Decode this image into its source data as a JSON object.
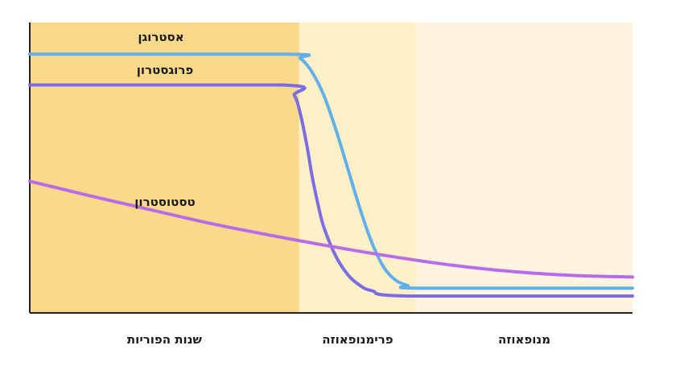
{
  "chart_data": {
    "type": "line",
    "title": "",
    "xlabel": "",
    "ylabel": "",
    "grid": false,
    "legend": "none",
    "x_range": [
      0,
      100
    ],
    "y_range": [
      0,
      100
    ],
    "phases": [
      {
        "name": "שנות הפוריות",
        "x_start": 0,
        "x_end": 44.7,
        "color": "#fad98c"
      },
      {
        "name": "פרימנופאוזה",
        "x_start": 44.7,
        "x_end": 64.1,
        "color": "#fff0c8"
      },
      {
        "name": "מנופאוזה",
        "x_start": 64.1,
        "x_end": 100,
        "color": "#fef4e0"
      }
    ],
    "series": [
      {
        "name": "אסטרוגן",
        "color": "#62b0ea",
        "x": [
          0,
          42.5,
          44.9,
          46.8,
          48.8,
          50.8,
          52.8,
          54.8,
          56.8,
          58.7,
          60.7,
          62.7,
          64.7,
          100
        ],
        "y": [
          91.7,
          91.7,
          90.0,
          85.0,
          76.0,
          63.0,
          48.0,
          33.0,
          20.0,
          11.0,
          6.0,
          4.0,
          3.0,
          3.0
        ]
      },
      {
        "name": "פרוגסטרון",
        "color": "#7b6de3",
        "x": [
          0,
          41.9,
          43.9,
          44.9,
          45.9,
          46.8,
          47.8,
          48.8,
          50.8,
          52.8,
          54.8,
          56.8,
          62.7,
          100
        ],
        "y": [
          80.0,
          80.0,
          76.0,
          69.0,
          58.0,
          46.0,
          35.0,
          26.0,
          15.0,
          8.0,
          4.0,
          2.0,
          0,
          0
        ]
      },
      {
        "name": "טסטוסטרון",
        "color": "#b86ce8",
        "x": [
          0,
          10,
          20,
          30,
          40,
          50,
          60,
          70,
          80,
          90,
          100
        ],
        "y": [
          43.5,
          38.0,
          32.7,
          27.5,
          23.0,
          18.8,
          15.0,
          11.7,
          9.3,
          7.8,
          7.2
        ]
      }
    ]
  }
}
